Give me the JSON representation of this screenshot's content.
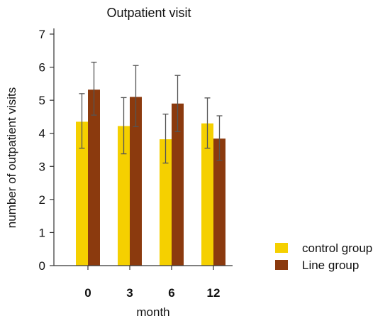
{
  "chart_data": {
    "type": "bar",
    "title": "Outpatient visit",
    "xlabel": "month",
    "ylabel": "number of outpatient visits",
    "categories": [
      "0",
      "3",
      "6",
      "12"
    ],
    "ylim": [
      0,
      7
    ],
    "yticks": [
      0,
      1,
      2,
      3,
      4,
      5,
      6,
      7
    ],
    "grid": false,
    "legend_position": "bottom-right",
    "series": [
      {
        "name": "control group",
        "color": "#f5d000",
        "values": [
          4.35,
          4.22,
          3.82,
          4.3
        ],
        "err_low": [
          3.55,
          3.38,
          3.1,
          3.55
        ],
        "err_high": [
          5.2,
          5.08,
          4.58,
          5.07
        ]
      },
      {
        "name": "Line group",
        "color": "#8b3a0e",
        "values": [
          5.32,
          5.1,
          4.9,
          3.84
        ],
        "err_low": [
          4.55,
          4.2,
          4.05,
          3.18
        ],
        "err_high": [
          6.15,
          6.05,
          5.75,
          4.53
        ]
      }
    ]
  }
}
